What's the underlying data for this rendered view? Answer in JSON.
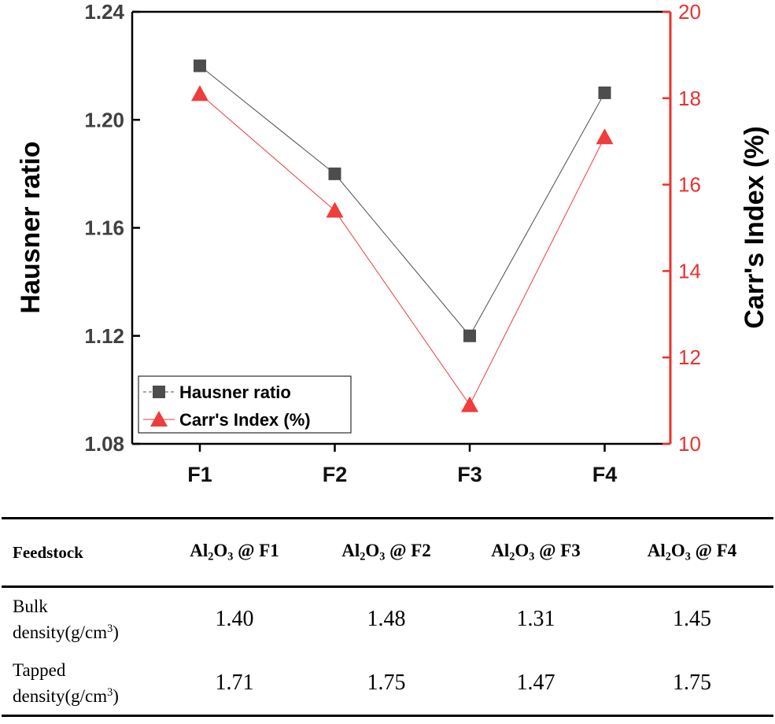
{
  "chart_data": {
    "type": "line",
    "categories": [
      "F1",
      "F2",
      "F3",
      "F4"
    ],
    "series": [
      {
        "name": "Hausner ratio",
        "axis": "left",
        "color": "#4d4d4d",
        "marker": "square",
        "values": [
          1.22,
          1.18,
          1.12,
          1.21
        ]
      },
      {
        "name": "Carr's Index (%)",
        "axis": "right",
        "color": "#f03c3c",
        "marker": "triangle",
        "values": [
          18.1,
          15.4,
          10.9,
          17.1
        ]
      }
    ],
    "y_left": {
      "label": "Hausner ratio",
      "ylim": [
        1.08,
        1.24
      ],
      "ticks": [
        "1.08",
        "1.12",
        "1.16",
        "1.20",
        "1.24"
      ],
      "color": "#404040"
    },
    "y_right": {
      "label": "Carr's Index (%)",
      "ylim": [
        10,
        20
      ],
      "ticks": [
        "10",
        "12",
        "14",
        "16",
        "18",
        "20"
      ],
      "color": "#e8322e"
    },
    "xlabel": "",
    "legend_position": "bottom-left"
  },
  "table": {
    "header": {
      "first": "Feedstock",
      "columns": [
        {
          "base1": "Al",
          "sub1": "2",
          "base2": "O",
          "sub2": "3",
          "rest": " @ F1"
        },
        {
          "base1": "Al",
          "sub1": "2",
          "base2": "O",
          "sub2": "3",
          "rest": " @ F2"
        },
        {
          "base1": "Al",
          "sub1": "2",
          "base2": "O",
          "sub2": "3",
          "rest": " @ F3"
        },
        {
          "base1": "Al",
          "sub1": "2",
          "base2": "O",
          "sub2": "3",
          "rest": " @ F4"
        }
      ]
    },
    "rows": [
      {
        "label_line1": "Bulk",
        "label_line2": "density(g/cm",
        "label_sup": "3",
        "label_tail": ")",
        "values": [
          "1.40",
          "1.48",
          "1.31",
          "1.45"
        ]
      },
      {
        "label_line1": "Tapped",
        "label_line2": "density(g/cm",
        "label_sup": "3",
        "label_tail": ")",
        "values": [
          "1.71",
          "1.75",
          "1.47",
          "1.75"
        ]
      }
    ]
  }
}
